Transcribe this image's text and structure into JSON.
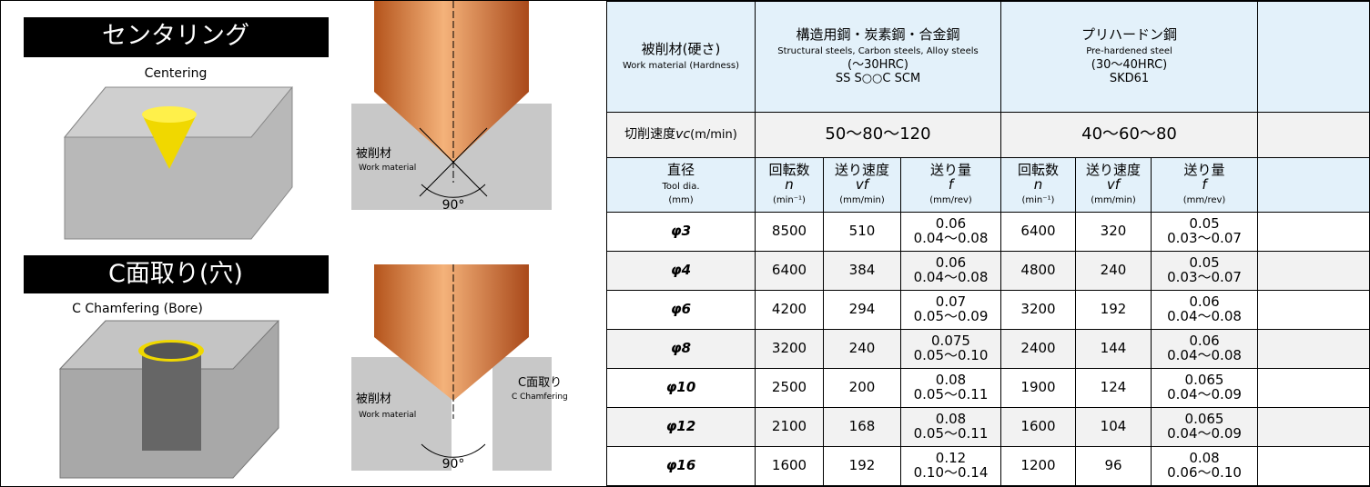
{
  "left": {
    "sections": [
      {
        "title": "センタリング",
        "subtitle": "Centering",
        "work_label": "被削材",
        "work_label_en": "Work material",
        "angle": "90°"
      },
      {
        "title": "C面取り(穴)",
        "subtitle": "C Chamfering (Bore)",
        "work_label": "被削材",
        "work_label_en": "Work material",
        "angle": "90°",
        "chamfer_label": "C面取り",
        "chamfer_label_en": "C Chamfering"
      }
    ]
  },
  "table": {
    "header": {
      "ja": "被削材(硬さ)",
      "en": "Work material (Hardness)",
      "groups": [
        {
          "ja": "構造用鋼・炭素鋼・合金鋼",
          "en": "Structural steels, Carbon steels, Alloy steels",
          "hardness": "(〜30HRC)",
          "grades": "SS S○○C SCM"
        },
        {
          "ja": "プリハードン鋼",
          "en": "Pre-hardened steel",
          "hardness": "(30〜40HRC)",
          "grades": "SKD61"
        }
      ]
    },
    "speed": {
      "label": "切削速度",
      "symbol": "vc",
      "unit": "(m/min)",
      "values": [
        "50〜80〜120",
        "40〜60〜80"
      ]
    },
    "dia": {
      "ja": "直径",
      "en": "Tool dia.",
      "unit": "(mm)"
    },
    "params": [
      {
        "ja": "回転数",
        "symbol": "n",
        "unit": "(min⁻¹)"
      },
      {
        "ja": "送り速度",
        "symbol": "vf",
        "unit": "(mm/min)"
      },
      {
        "ja": "送り量",
        "symbol": "f",
        "unit": "(mm/rev)"
      }
    ],
    "rows": [
      [
        "φ3",
        "8500",
        "510",
        "0.06",
        "0.04〜0.08",
        "6400",
        "320",
        "0.05",
        "0.03〜0.07"
      ],
      [
        "φ4",
        "6400",
        "384",
        "0.06",
        "0.04〜0.08",
        "4800",
        "240",
        "0.05",
        "0.03〜0.07"
      ],
      [
        "φ6",
        "4200",
        "294",
        "0.07",
        "0.05〜0.09",
        "3200",
        "192",
        "0.06",
        "0.04〜0.08"
      ],
      [
        "φ8",
        "3200",
        "240",
        "0.075",
        "0.05〜0.10",
        "2400",
        "144",
        "0.06",
        "0.04〜0.08"
      ],
      [
        "φ10",
        "2500",
        "200",
        "0.08",
        "0.05〜0.11",
        "1900",
        "124",
        "0.065",
        "0.04〜0.09"
      ],
      [
        "φ12",
        "2100",
        "168",
        "0.08",
        "0.05〜0.11",
        "1600",
        "104",
        "0.065",
        "0.04〜0.09"
      ],
      [
        "φ16",
        "1600",
        "192",
        "0.12",
        "0.10〜0.14",
        "1200",
        "96",
        "0.08",
        "0.06〜0.10"
      ]
    ]
  }
}
